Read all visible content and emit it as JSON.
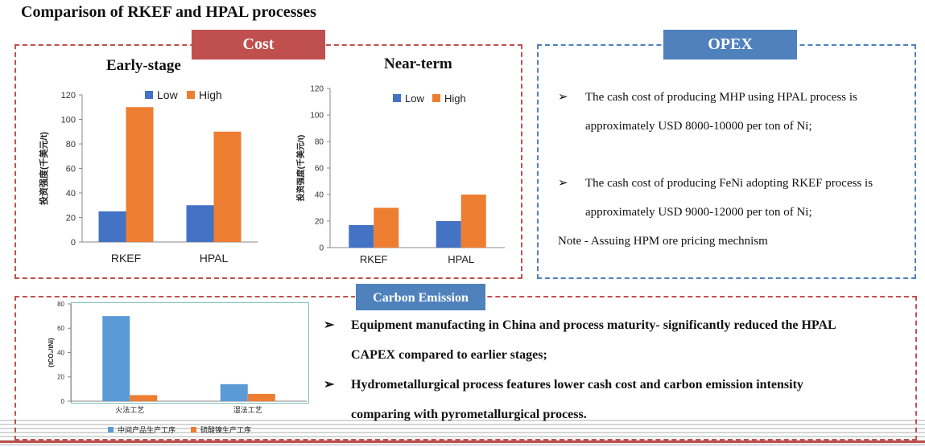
{
  "title": "Comparison of RKEF and HPAL processes",
  "cost": {
    "tag": "Cost",
    "early_title": "Early-stage",
    "near_title": "Near-term"
  },
  "opex": {
    "tag": "OPEX",
    "bullet1_line1": "The cash cost of producing MHP using  HPAL process is",
    "bullet1_line2": "approximately USD 8000-10000 per ton of Ni;",
    "bullet2_line1": "The cash cost of producing FeNi adopting RKEF process is",
    "bullet2_line2": "approximately USD 9000-12000 per ton of Ni;",
    "note": "Note - Assuing HPM ore pricing mechnism"
  },
  "carbon": {
    "tag": "Carbon Emission",
    "bullet1_line1": "Equipment manufacting in China and process maturity- significantly reduced the HPAL",
    "bullet1_line2": "CAPEX compared to earlier stages;",
    "bullet2_line1": "Hydrometallurgical process features lower cash cost and carbon emission intensity",
    "bullet2_line2": "comparing with pyrometallurgical process."
  },
  "bullet_glyph": "➢",
  "colors": {
    "red": "#c0504d",
    "blue": "#4f81bd",
    "bar_blue": "#4472c4",
    "bar_orange": "#ed7d31",
    "bar_lightblue": "#5b9bd5"
  },
  "chart_data": [
    {
      "type": "bar",
      "title": "Early-stage",
      "categories": [
        "RKEF",
        "HPAL"
      ],
      "series": [
        {
          "name": "Low",
          "values": [
            25,
            30
          ],
          "color": "#4472c4"
        },
        {
          "name": "High",
          "values": [
            110,
            90
          ],
          "color": "#ed7d31"
        }
      ],
      "ylabel": "投资强度(千美元/t)",
      "ylim": [
        0,
        120
      ],
      "yticks": [
        0,
        20,
        40,
        60,
        80,
        100,
        120
      ],
      "legend": "top"
    },
    {
      "type": "bar",
      "title": "Near-term",
      "categories": [
        "RKEF",
        "HPAL"
      ],
      "series": [
        {
          "name": "Low",
          "values": [
            17,
            20
          ],
          "color": "#4472c4"
        },
        {
          "name": "High",
          "values": [
            30,
            40
          ],
          "color": "#ed7d31"
        }
      ],
      "ylabel": "投资强度(千美元/t)",
      "ylim": [
        0,
        120
      ],
      "yticks": [
        0,
        20,
        40,
        60,
        80,
        100,
        120
      ],
      "legend": "top"
    },
    {
      "type": "bar",
      "title": "",
      "categories": [
        "火法工艺",
        "湿法工艺"
      ],
      "series": [
        {
          "name": "中间产品生产工序",
          "values": [
            70,
            14
          ],
          "color": "#5b9bd5"
        },
        {
          "name": "硫酸镍生产工序",
          "values": [
            5,
            6
          ],
          "color": "#ed7d31"
        }
      ],
      "ylabel": "(tCO₂/tNi)",
      "ylim": [
        0,
        80
      ],
      "yticks": [
        0,
        20,
        40,
        60,
        80
      ],
      "legend": "bottom"
    }
  ]
}
